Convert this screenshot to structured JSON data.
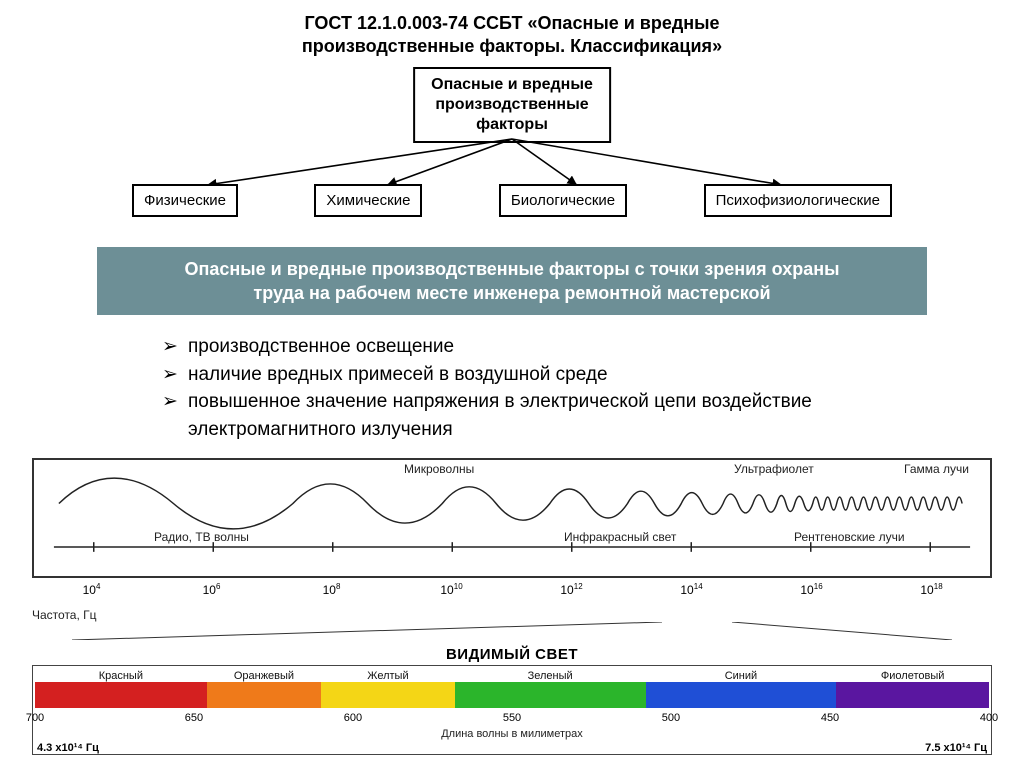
{
  "title_line1": "ГОСТ 12.1.0.003-74 ССБТ «Опасные и вредные",
  "title_line2": "производственные факторы. Классификация»",
  "tree": {
    "root_l1": "Опасные и вредные",
    "root_l2": "производственные",
    "root_l3": "факторы",
    "children": [
      "Физические",
      "Химические",
      "Биологические",
      "Психофизиологические"
    ]
  },
  "band_l1": "Опасные и вредные производственные факторы с точки зрения охраны",
  "band_l2": "труда на рабочем месте инженера ремонтной мастерской",
  "band_bg": "#6d8f96",
  "band_fg": "#ffffff",
  "bullets": [
    "производственное освещение",
    "наличие вредных примесей в воздушной среде",
    "повышенное значение напряжения в электрической цепи воздействие электромагнитного излучения"
  ],
  "spectrum": {
    "wave_labels": {
      "radio": "Радио, ТВ волны",
      "micro": "Микроволны",
      "ir": "Инфракрасный свет",
      "uv": "Ультрафиолет",
      "xray": "Рентгеновские лучи",
      "gamma": "Гамма лучи"
    },
    "freq_exponents": [
      "4",
      "6",
      "8",
      "10",
      "12",
      "14",
      "16",
      "18"
    ],
    "freq_unit": "Частота, Гц",
    "visible_title": "ВИДИМЫЙ СВЕТ",
    "visible_segments": [
      {
        "label": "Красный",
        "color": "#d42020",
        "width": 18
      },
      {
        "label": "Оранжевый",
        "color": "#ef7a1a",
        "width": 12
      },
      {
        "label": "Желтый",
        "color": "#f4d616",
        "width": 14
      },
      {
        "label": "Зеленый",
        "color": "#2bb52b",
        "width": 20
      },
      {
        "label": "Синий",
        "color": "#1f4fd6",
        "width": 20
      },
      {
        "label": "Фиолетовый",
        "color": "#5a16a0",
        "width": 16
      }
    ],
    "nm_ticks": [
      "700",
      "650",
      "600",
      "550",
      "500",
      "450",
      "400"
    ],
    "nm_label": "Длина волны в милиметрах",
    "hz_left": "4.3 x10¹⁴ Гц",
    "hz_right": "7.5 x10¹⁴ Гц"
  }
}
